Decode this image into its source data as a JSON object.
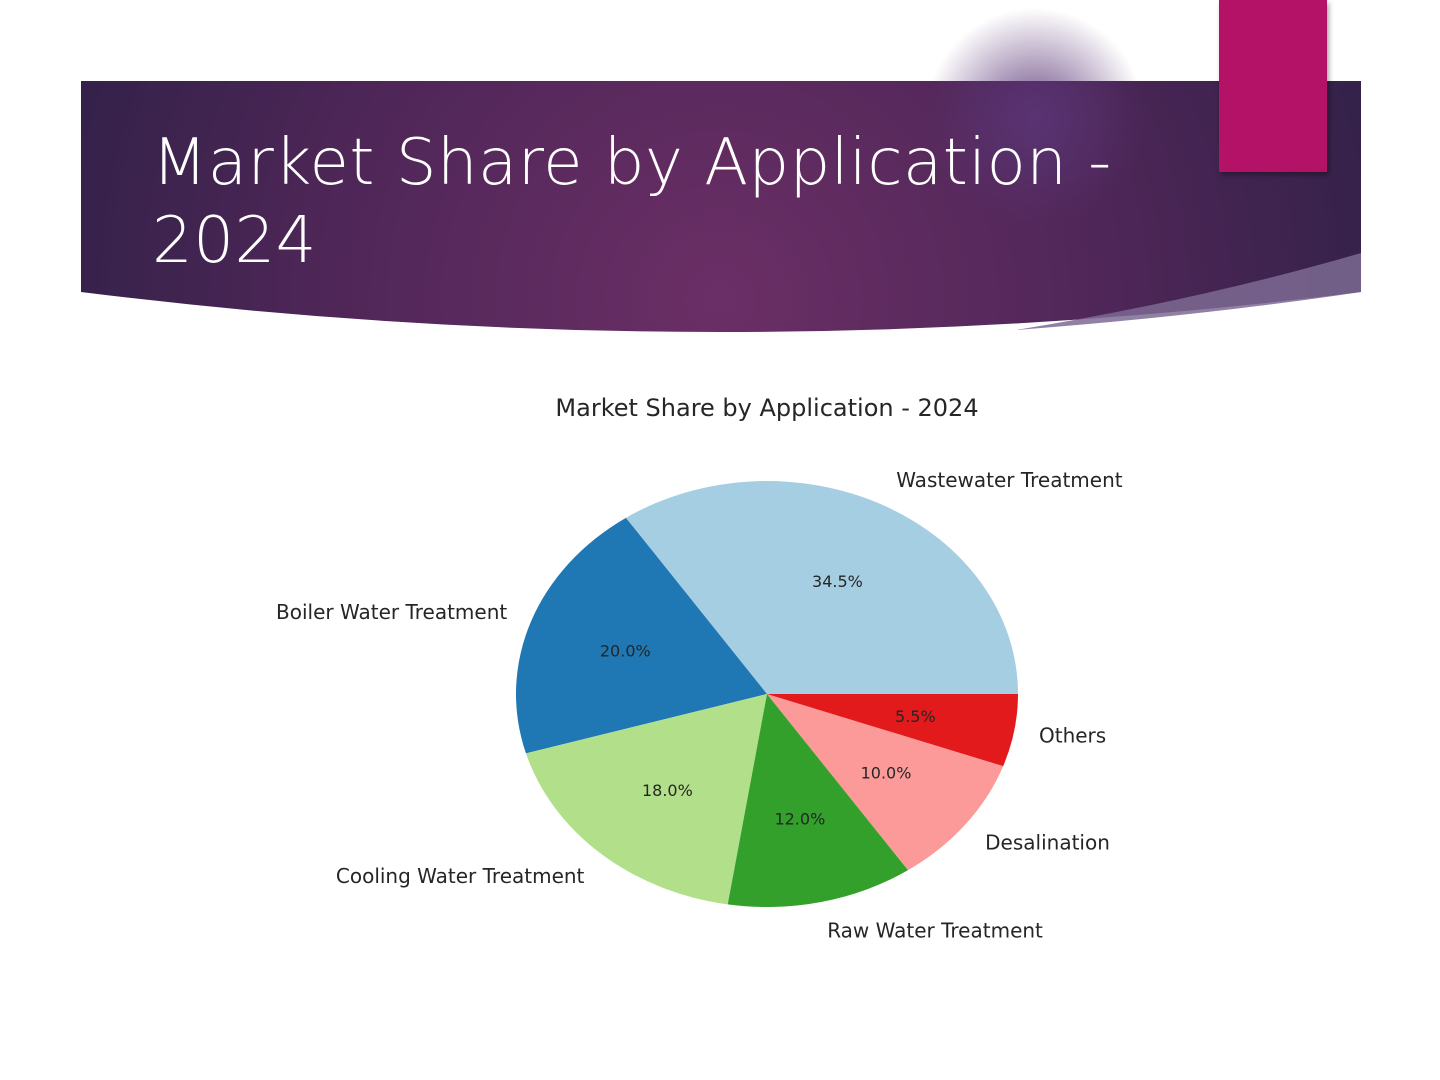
{
  "slide": {
    "title_line1": "Market Share by Application -",
    "title_line2": "2024"
  },
  "colors": {
    "banner_dark": "#2f2147",
    "banner_mid": "#6b2f66",
    "accent_tab": "#b41266",
    "text_dark": "#262626"
  },
  "chart_data": {
    "type": "pie",
    "title": "Market Share by Application - 2024",
    "categories": [
      "Wastewater Treatment",
      "Boiler Water Treatment",
      "Cooling Water Treatment",
      "Raw Water Treatment",
      "Desalination",
      "Others"
    ],
    "values": [
      34.5,
      20.0,
      18.0,
      12.0,
      10.0,
      5.5
    ],
    "labels": [
      "34.5%",
      "20.0%",
      "18.0%",
      "12.0%",
      "10.0%",
      "5.5%"
    ],
    "colors": [
      "#a6cee3",
      "#1f78b4",
      "#b2df8a",
      "#33a02c",
      "#fb9a99",
      "#e31a1c"
    ],
    "start_angle_deg": 0,
    "direction": "counterclockwise",
    "legend": "none"
  }
}
